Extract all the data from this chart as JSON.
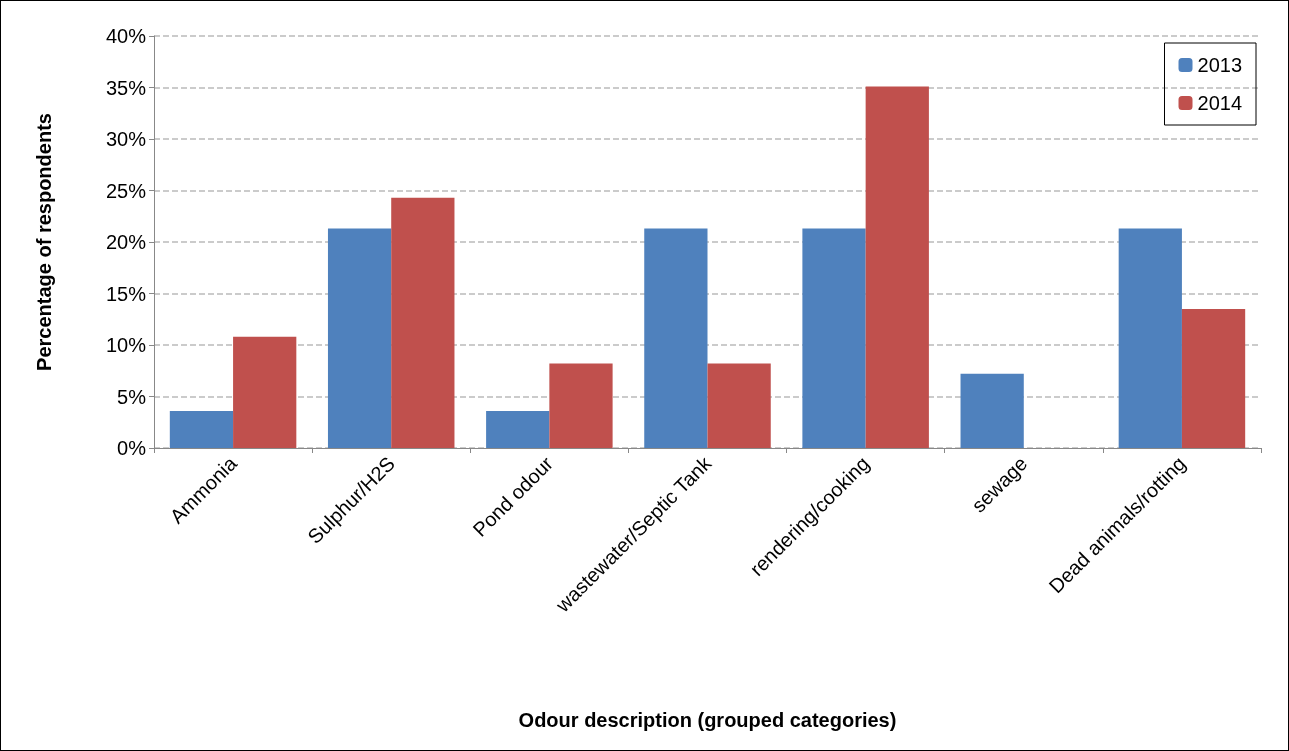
{
  "chart_data": {
    "type": "bar",
    "xlabel": "Odour description (grouped categories)",
    "ylabel": "Percentage of respondents",
    "categories": [
      "Ammonia",
      "Sulphur/H2S",
      "Pond odour",
      "wastewater/Septic Tank",
      "rendering/cooking",
      "sewage",
      "Dead animals/rotting"
    ],
    "series": [
      {
        "name": "2013",
        "color": "#4f81bd",
        "values": [
          3.6,
          21.3,
          3.6,
          21.3,
          21.3,
          7.2,
          21.3
        ]
      },
      {
        "name": "2014",
        "color": "#c0504d",
        "values": [
          10.8,
          24.3,
          8.2,
          8.2,
          35.1,
          0,
          13.5
        ]
      }
    ],
    "ylim": [
      0,
      40
    ],
    "yticks": [
      {
        "value": 0,
        "label": "0%"
      },
      {
        "value": 5,
        "label": "5%"
      },
      {
        "value": 10,
        "label": "10%"
      },
      {
        "value": 15,
        "label": "15%"
      },
      {
        "value": 20,
        "label": "20%"
      },
      {
        "value": 25,
        "label": "25%"
      },
      {
        "value": 30,
        "label": "30%"
      },
      {
        "value": 35,
        "label": "35%"
      },
      {
        "value": 40,
        "label": "40%"
      }
    ],
    "grid": "y",
    "legend": "top right"
  }
}
